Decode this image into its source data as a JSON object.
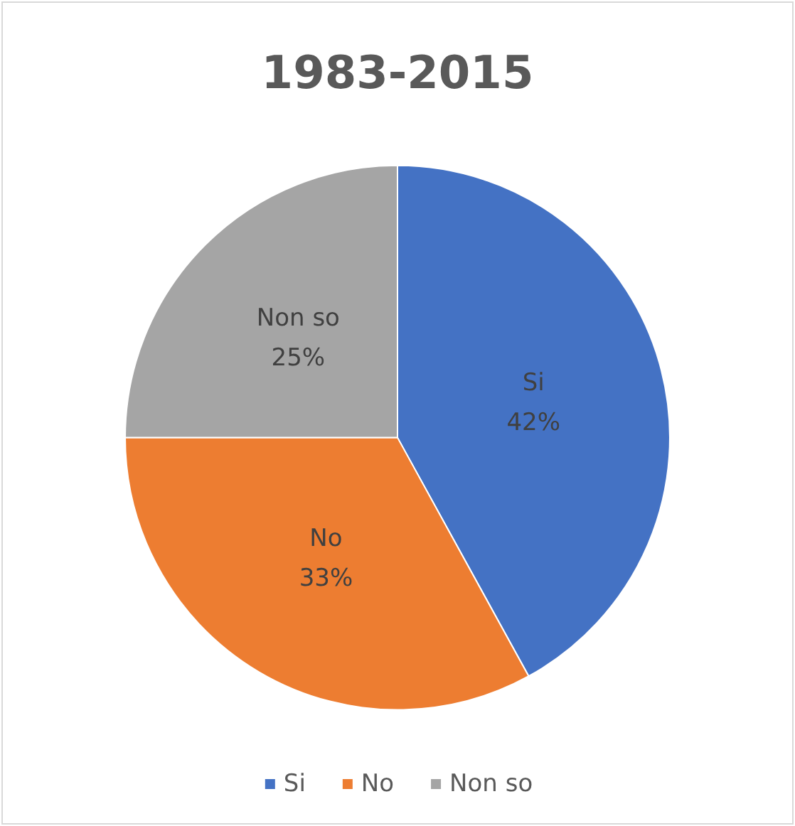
{
  "chart_data": {
    "type": "pie",
    "title": "1983-2015",
    "categories": [
      "Si",
      "No",
      "Non so"
    ],
    "values": [
      42,
      33,
      25
    ],
    "colors": [
      "#4472c4",
      "#ed7d31",
      "#a5a5a5"
    ],
    "value_labels": [
      "42%",
      "33%",
      "25%"
    ],
    "legend": "bottom"
  }
}
